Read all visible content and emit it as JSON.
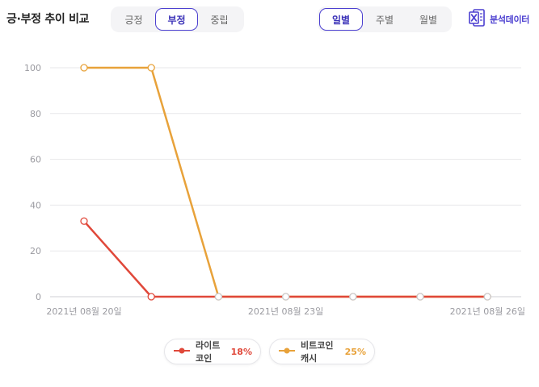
{
  "header": {
    "title": "긍·부정 추이 비교"
  },
  "sentiment_tabs": [
    {
      "label": "긍정",
      "active": false
    },
    {
      "label": "부정",
      "active": true
    },
    {
      "label": "중립",
      "active": false
    }
  ],
  "period_tabs": [
    {
      "label": "일별",
      "active": true
    },
    {
      "label": "주별",
      "active": false
    },
    {
      "label": "월별",
      "active": false
    }
  ],
  "export": {
    "label": "분석데이터",
    "icon": "excel-icon"
  },
  "chart_data": {
    "type": "line",
    "x": [
      "2021-08-20",
      "2021-08-21",
      "2021-08-22",
      "2021-08-23",
      "2021-08-24",
      "2021-08-25",
      "2021-08-26"
    ],
    "x_tick_labels": [
      "2021년 08월 20일",
      "2021년 08월 23일",
      "2021년 08월 26일"
    ],
    "y_ticks": [
      "0",
      "20",
      "40",
      "60",
      "80",
      "100"
    ],
    "ylim": [
      0,
      100
    ],
    "grid": true,
    "legend_position": "bottom-center",
    "series": [
      {
        "name": "라이트코인",
        "percent": "18%",
        "color": "#e0483a",
        "values": [
          33,
          0,
          0,
          0,
          0,
          0,
          0
        ]
      },
      {
        "name": "비트코인캐시",
        "percent": "25%",
        "color": "#e8a23a",
        "values": [
          100,
          100,
          0,
          0,
          0,
          0,
          0
        ]
      }
    ]
  }
}
